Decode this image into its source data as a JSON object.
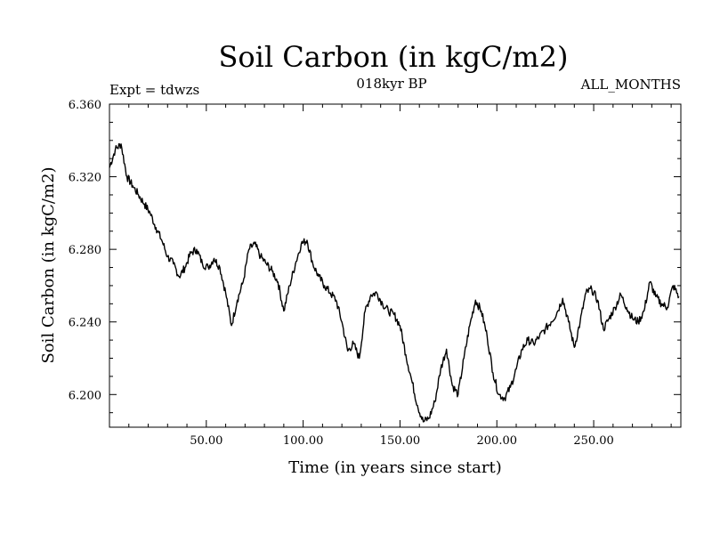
{
  "chart_data": {
    "type": "line",
    "title": "Soil Carbon (in kgC/m2)",
    "subtitle": "018kyr BP",
    "left_label": "Expt = tdwzs",
    "right_label": "ALL_MONTHS",
    "xlabel": "Time (in years since start)",
    "ylabel": "Soil Carbon (in kgC/m2)",
    "xlim": [
      0,
      295
    ],
    "ylim": [
      6.182,
      6.36
    ],
    "x_ticks": [
      50,
      100,
      150,
      200,
      250
    ],
    "x_tick_labels": [
      "50.00",
      "100.00",
      "150.00",
      "200.00",
      "250.00"
    ],
    "y_ticks": [
      6.2,
      6.24,
      6.28,
      6.32,
      6.36
    ],
    "y_tick_labels": [
      "6.200",
      "6.240",
      "6.280",
      "6.320",
      "6.360"
    ],
    "series": [
      {
        "name": "Soil Carbon",
        "x": [
          0,
          3,
          6,
          9,
          12,
          15,
          18,
          21,
          24,
          27,
          30,
          33,
          36,
          39,
          42,
          45,
          48,
          51,
          54,
          57,
          60,
          63,
          66,
          69,
          72,
          75,
          78,
          81,
          84,
          87,
          90,
          93,
          96,
          99,
          102,
          105,
          108,
          111,
          114,
          117,
          120,
          123,
          126,
          129,
          132,
          135,
          138,
          141,
          144,
          147,
          150,
          153,
          156,
          159,
          162,
          165,
          168,
          171,
          174,
          177,
          180,
          183,
          186,
          189,
          192,
          195,
          198,
          201,
          204,
          207,
          210,
          213,
          216,
          219,
          222,
          225,
          228,
          231,
          234,
          237,
          240,
          243,
          246,
          249,
          252,
          255,
          258,
          261,
          264,
          267,
          270,
          273,
          276,
          279,
          282,
          285,
          288,
          291,
          294
        ],
        "y": [
          6.325,
          6.335,
          6.338,
          6.32,
          6.315,
          6.31,
          6.305,
          6.3,
          6.292,
          6.285,
          6.276,
          6.272,
          6.265,
          6.27,
          6.278,
          6.28,
          6.272,
          6.27,
          6.275,
          6.27,
          6.256,
          6.238,
          6.252,
          6.262,
          6.28,
          6.283,
          6.276,
          6.272,
          6.268,
          6.262,
          6.246,
          6.26,
          6.272,
          6.283,
          6.285,
          6.272,
          6.265,
          6.26,
          6.256,
          6.252,
          6.24,
          6.224,
          6.228,
          6.22,
          6.246,
          6.255,
          6.256,
          6.25,
          6.246,
          6.244,
          6.238,
          6.222,
          6.208,
          6.194,
          6.185,
          6.187,
          6.196,
          6.214,
          6.225,
          6.205,
          6.2,
          6.22,
          6.238,
          6.252,
          6.246,
          6.232,
          6.212,
          6.2,
          6.198,
          6.204,
          6.214,
          6.225,
          6.23,
          6.228,
          6.232,
          6.236,
          6.24,
          6.245,
          6.253,
          6.24,
          6.226,
          6.24,
          6.256,
          6.258,
          6.252,
          6.236,
          6.242,
          6.248,
          6.255,
          6.248,
          6.242,
          6.24,
          6.246,
          6.262,
          6.254,
          6.25,
          6.248,
          6.26,
          6.254
        ]
      }
    ]
  }
}
